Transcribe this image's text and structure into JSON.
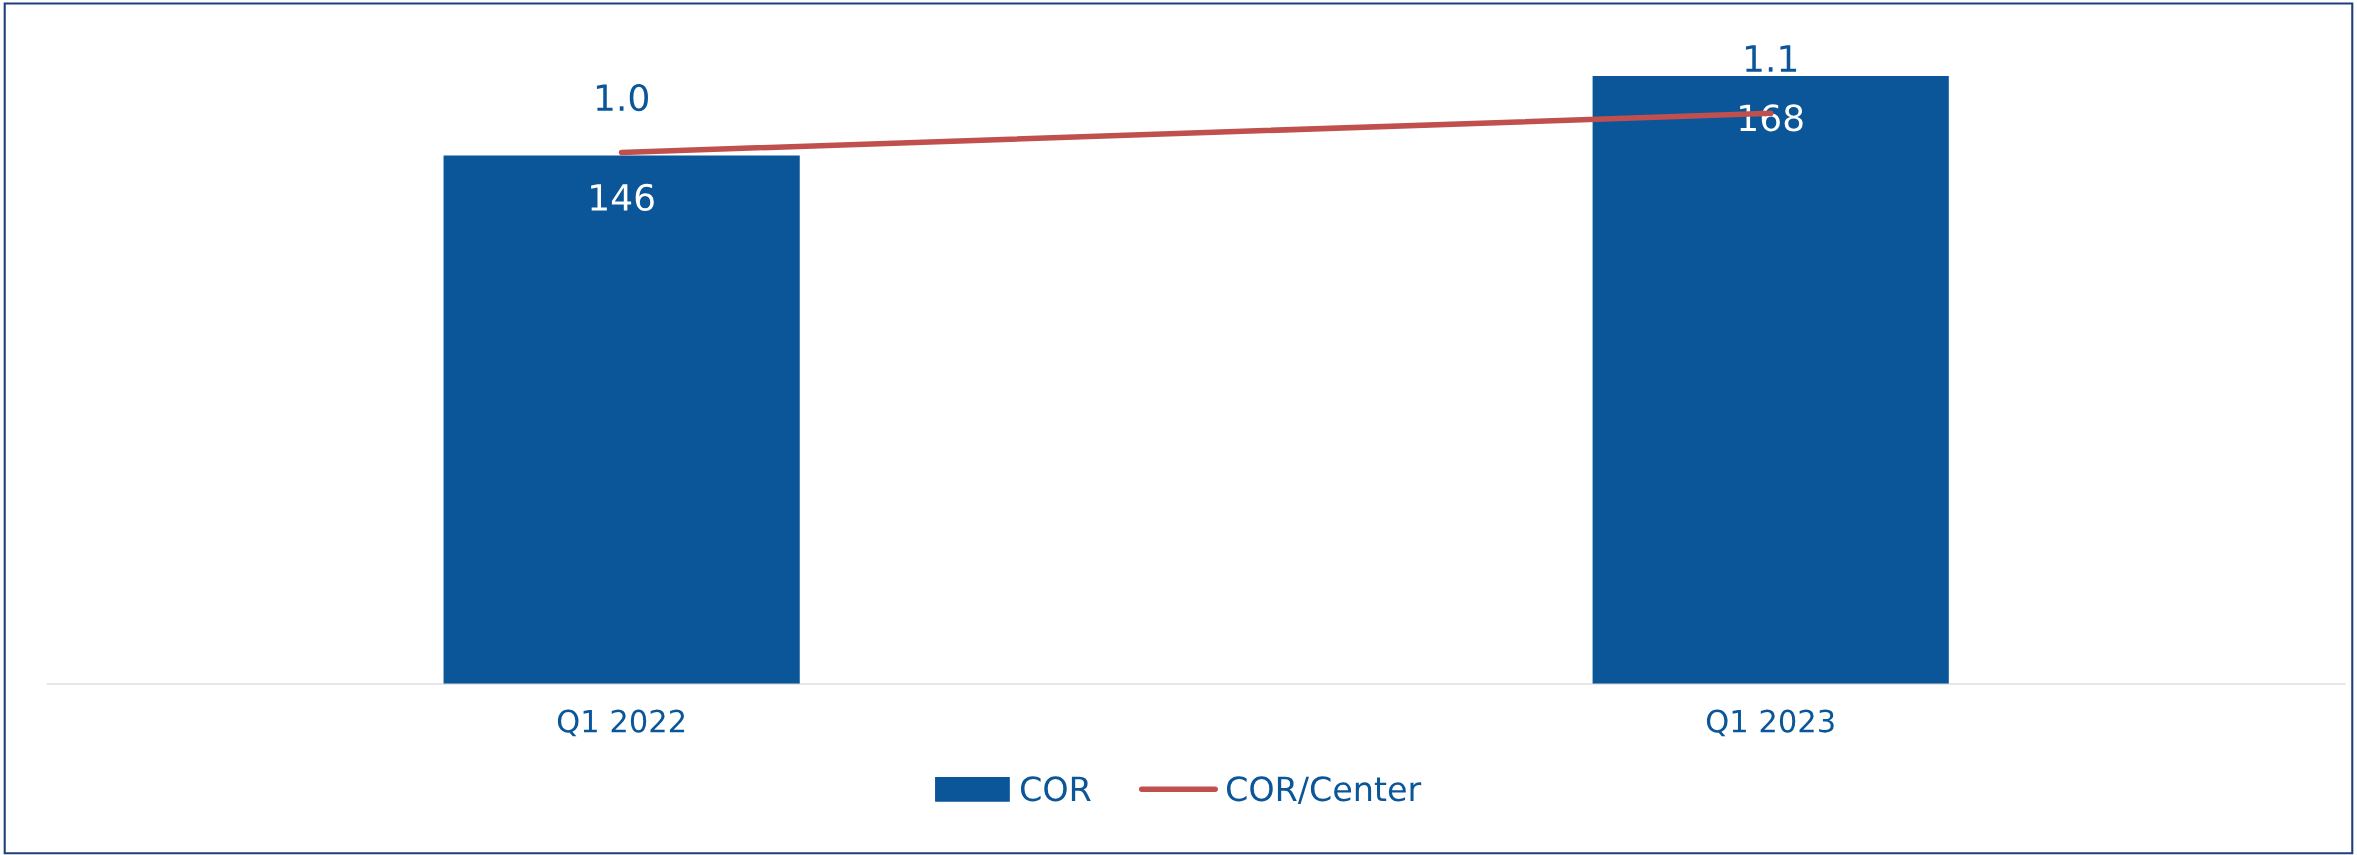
{
  "chart_data": {
    "type": "bar",
    "categories": [
      "Q1 2022",
      "Q1 2023"
    ],
    "data_labels": true,
    "legend": "bottom",
    "grid": false,
    "series": [
      {
        "name": "COR",
        "color": "#0b5699",
        "values": [
          146,
          168
        ]
      },
      {
        "name": "COR/Center",
        "type": "line",
        "axis": "y2",
        "color": "#c0504d",
        "values": [
          1.0,
          1.1
        ],
        "value_labels": [
          "1.0",
          "1.1"
        ]
      }
    ]
  }
}
